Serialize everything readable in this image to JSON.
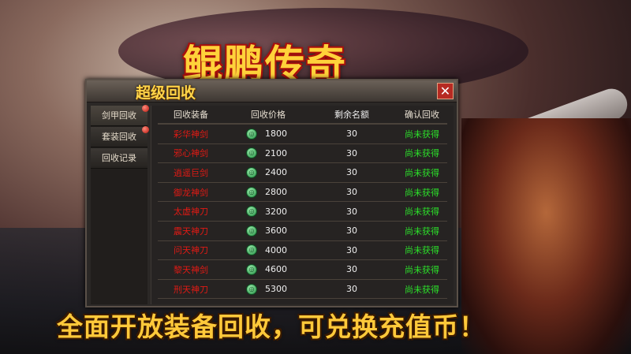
{
  "logo": "鲲鹏传奇",
  "panel": {
    "title": "超级回收",
    "close_icon": "close-icon"
  },
  "sidebar": {
    "tabs": [
      {
        "label": "剑甲回收",
        "badge": true
      },
      {
        "label": "套装回收",
        "badge": true
      },
      {
        "label": "回收记录",
        "badge": false
      }
    ]
  },
  "table": {
    "headers": [
      "回收装备",
      "回收价格",
      "剩余名额",
      "确认回收"
    ],
    "rows": [
      {
        "name": "彩华神剑",
        "price": "1800",
        "remaining": "30",
        "status": "尚未获得"
      },
      {
        "name": "邪心神剑",
        "price": "2100",
        "remaining": "30",
        "status": "尚未获得"
      },
      {
        "name": "逍遥巨剑",
        "price": "2400",
        "remaining": "30",
        "status": "尚未获得"
      },
      {
        "name": "御龙神剑",
        "price": "2800",
        "remaining": "30",
        "status": "尚未获得"
      },
      {
        "name": "太虚神刀",
        "price": "3200",
        "remaining": "30",
        "status": "尚未获得"
      },
      {
        "name": "震天神刀",
        "price": "3600",
        "remaining": "30",
        "status": "尚未获得"
      },
      {
        "name": "问天神刀",
        "price": "4000",
        "remaining": "30",
        "status": "尚未获得"
      },
      {
        "name": "黎天神剑",
        "price": "4600",
        "remaining": "30",
        "status": "尚未获得"
      },
      {
        "name": "刑天神刀",
        "price": "5300",
        "remaining": "30",
        "status": "尚未获得"
      }
    ]
  },
  "banner": "全面开放装备回收，可兑换充值币！",
  "colors": {
    "item_name": "#e01a14",
    "status": "#2ce02a",
    "title": "#ffd54a"
  }
}
